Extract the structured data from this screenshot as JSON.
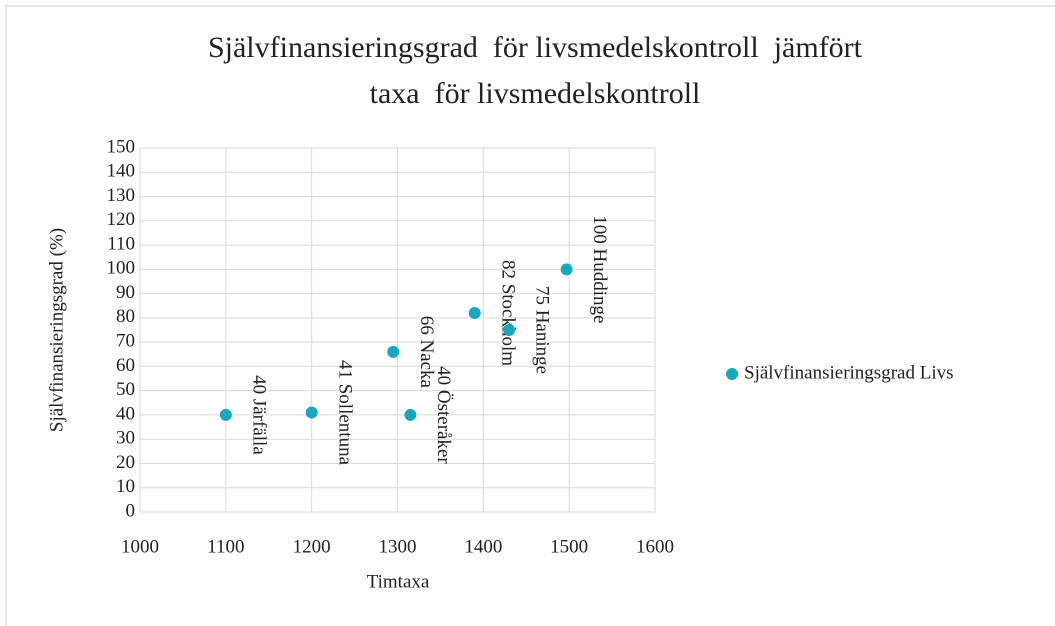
{
  "chart_data": {
    "type": "scatter",
    "title": [
      "Självfinansieringsgrad  för livsmedelskontroll  jämfört",
      "taxa  för livsmedelskontroll"
    ],
    "x_label": "Timtaxa",
    "y_label": "Självfinansieringsgrad (%)",
    "series": [
      {
        "name": "Självfinansieringsgrad Livs",
        "color": "#1aa7be",
        "x": [
          1100,
          1200,
          1295,
          1315,
          1390,
          1430,
          1497
        ],
        "values": [
          40,
          41,
          66,
          40,
          82,
          75,
          100
        ],
        "value_labels": [
          "40 Järfälla",
          "41 Sollentuna",
          "66 Nacka",
          "40 Österåker",
          "82 Stockholm",
          "75 Haninge",
          "100 Huddinge"
        ]
      }
    ],
    "xlim": [
      1000,
      1600
    ],
    "xticks": [
      1000,
      1100,
      1200,
      1300,
      1400,
      1500,
      1600
    ],
    "ylim": [
      0,
      150
    ],
    "yticks": [
      0,
      10,
      20,
      30,
      40,
      50,
      60,
      70,
      80,
      90,
      100,
      110,
      120,
      130,
      140,
      150
    ],
    "grid": true,
    "legend": "right"
  }
}
